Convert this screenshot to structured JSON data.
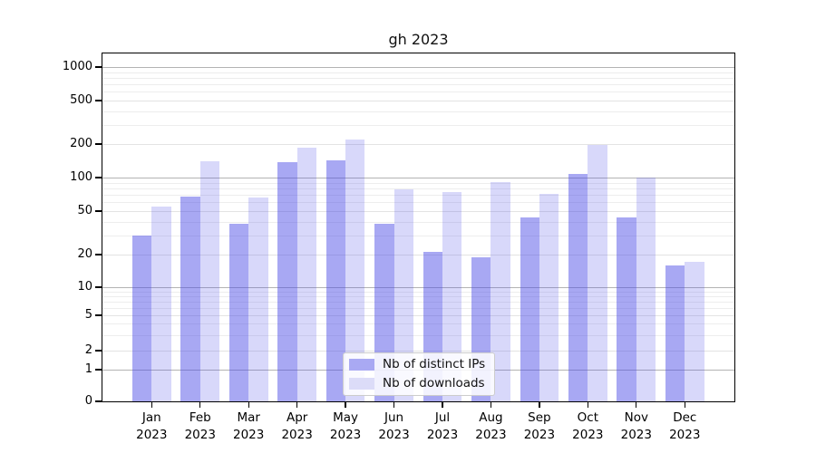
{
  "chart_data": {
    "type": "bar",
    "title": "gh 2023",
    "categories": [
      "Jan 2023",
      "Feb 2023",
      "Mar 2023",
      "Apr 2023",
      "May 2023",
      "Jun 2023",
      "Jul 2023",
      "Aug 2023",
      "Sep 2023",
      "Oct 2023",
      "Nov 2023",
      "Dec 2023"
    ],
    "series": [
      {
        "name": "Nb of distinct IPs",
        "color": "#a9a9f3",
        "bar_fill": "rgba(70,70,230,0.47)",
        "values": [
          30,
          68,
          38,
          137,
          143,
          38,
          21,
          19,
          44,
          108,
          44,
          16
        ]
      },
      {
        "name": "Nb of downloads",
        "color": "#dcdcf8",
        "bar_fill": "rgba(70,70,230,0.21)",
        "values": [
          55,
          140,
          66,
          187,
          222,
          79,
          74,
          91,
          71,
          197,
          100,
          17
        ]
      }
    ],
    "xlabel": "",
    "ylabel": "",
    "yscale": "symlog",
    "yticks": [
      0,
      1,
      2,
      5,
      10,
      20,
      50,
      100,
      200,
      500,
      1000
    ],
    "ytick_labels": [
      "0",
      "1",
      "2",
      "5",
      "10",
      "20",
      "50",
      "100",
      "200",
      "500",
      "1000"
    ],
    "ylim": [
      0,
      1400
    ],
    "grid": true,
    "legend_position": "lower center"
  },
  "colors": {
    "axis": "#000000",
    "grid_major": "#b3b3b3",
    "grid_sub": "#e3e3e3",
    "grid_minor": "#ededed",
    "background": "#ffffff",
    "legend_border": "#cccccc",
    "text": "#111111"
  }
}
